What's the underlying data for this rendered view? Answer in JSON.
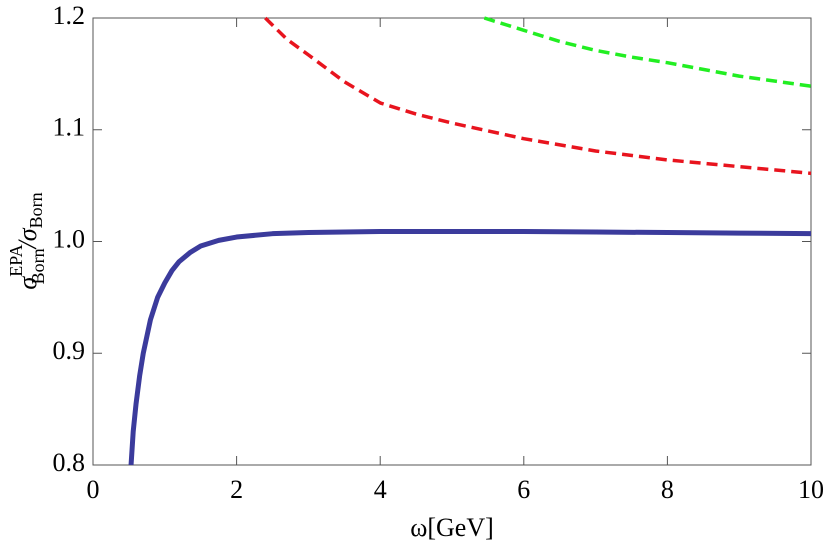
{
  "chart_data": {
    "type": "line",
    "xlabel": "ω[GeV]",
    "ylabel": [
      "σ",
      "EPA",
      "Born",
      "/σ",
      "Born"
    ],
    "xlim": [
      0,
      10
    ],
    "xticks": [
      0,
      2,
      4,
      6,
      8,
      10
    ],
    "ylim": [
      0.8,
      1.2
    ],
    "yticks": [
      0.8,
      0.9,
      {
        "value": 1,
        "label": "1.0"
      },
      1.1,
      1.2
    ],
    "series": [
      {
        "color": "#3b3b9c",
        "style": "solid",
        "x": [
          0.53,
          0.56,
          0.6,
          0.65,
          0.7,
          0.8,
          0.9,
          1.0,
          1.1,
          1.2,
          1.35,
          1.5,
          1.75,
          2,
          2.5,
          3,
          4,
          5,
          6,
          7,
          8,
          9,
          10
        ],
        "values": [
          0.8,
          0.83,
          0.855,
          0.88,
          0.9,
          0.93,
          0.95,
          0.963,
          0.974,
          0.982,
          0.99,
          0.996,
          1.001,
          1.004,
          1.007,
          1.008,
          1.009,
          1.009,
          1.009,
          1.0085,
          1.008,
          1.0075,
          1.007
        ]
      },
      {
        "color": "#e8141e",
        "style": "dashed",
        "x": [
          2.4,
          2.7,
          3,
          3.5,
          4,
          4.5,
          5,
          6,
          7,
          8,
          9,
          10
        ],
        "values": [
          1.2,
          1.181,
          1.167,
          1.143,
          1.124,
          1.114,
          1.106,
          1.092,
          1.081,
          1.073,
          1.067,
          1.061
        ]
      },
      {
        "color": "#22ee22",
        "style": "dashed",
        "x": [
          5.45,
          6,
          6.5,
          7,
          7.5,
          8,
          9,
          10
        ],
        "values": [
          1.2,
          1.189,
          1.179,
          1.171,
          1.165,
          1.16,
          1.148,
          1.139
        ]
      }
    ]
  }
}
